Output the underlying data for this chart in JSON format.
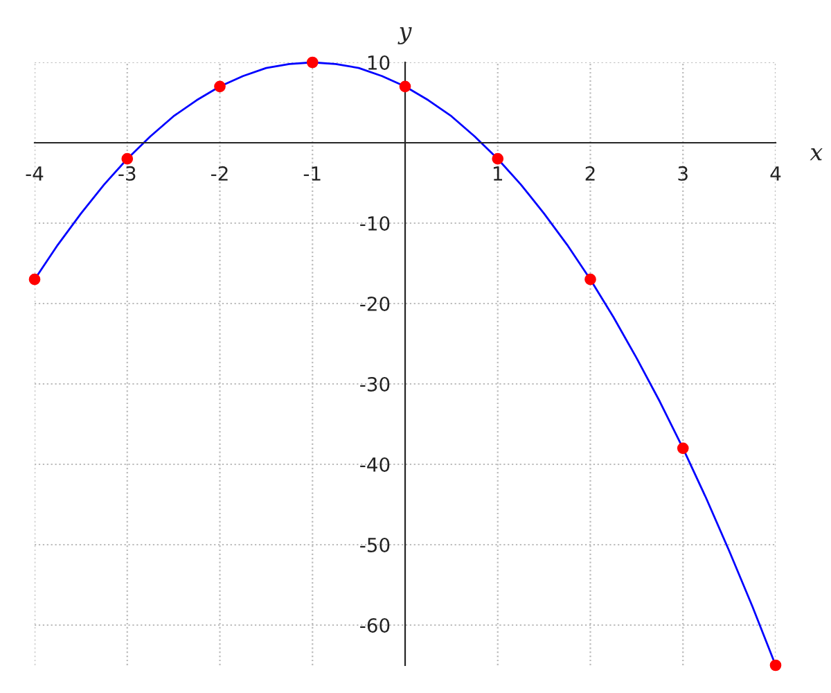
{
  "chart_data": {
    "type": "line",
    "xlabel": "x",
    "ylabel": "y",
    "xlim": [
      -4,
      4
    ],
    "ylim": [
      -65,
      10
    ],
    "xticks": [
      -4,
      -3,
      -2,
      -1,
      1,
      2,
      3,
      4
    ],
    "yticks": [
      -60,
      -50,
      -40,
      -30,
      -20,
      -10,
      10
    ],
    "grid": true,
    "legend": false,
    "series": [
      {
        "color": "#0000ff",
        "marker": "none",
        "x": [
          -4,
          -3.75,
          -3.5,
          -3.25,
          -3,
          -2.75,
          -2.5,
          -2.25,
          -2,
          -1.75,
          -1.5,
          -1.25,
          -1,
          -0.75,
          -0.5,
          -0.25,
          0,
          0.25,
          0.5,
          0.75,
          1,
          1.25,
          1.5,
          1.75,
          2,
          2.25,
          2.5,
          2.75,
          3,
          3.25,
          3.5,
          3.75,
          4
        ],
        "values": [
          -17,
          -12.7,
          -8.8,
          -5.2,
          -2,
          0.8,
          3.3,
          5.3,
          7,
          8.3,
          9.3,
          9.8,
          10,
          9.8,
          9.3,
          8.3,
          7,
          5.3,
          3.3,
          0.8,
          -2,
          -5.2,
          -8.8,
          -12.7,
          -17,
          -21.7,
          -26.8,
          -32.2,
          -38,
          -44.2,
          -50.8,
          -57.7,
          -65
        ]
      },
      {
        "type": "scatter",
        "color": "#ff0000",
        "marker": "circle",
        "x": [
          -4,
          -3,
          -2,
          -1,
          0,
          1,
          2,
          3,
          4
        ],
        "values": [
          -17,
          -2,
          7,
          10,
          7,
          -2,
          -17,
          -38,
          -65
        ]
      }
    ]
  }
}
